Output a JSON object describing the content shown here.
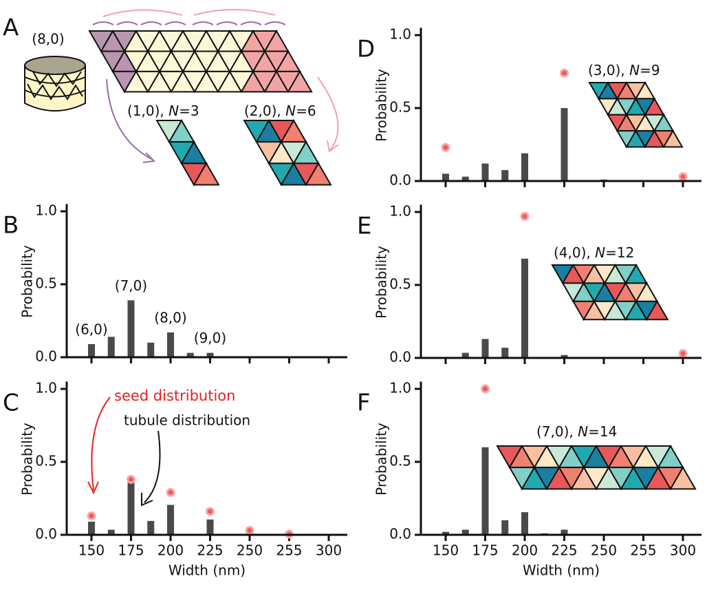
{
  "panel_a": {
    "letter": "A",
    "tube_label": "(8,0)",
    "strip_labels": [
      [
        "(1,0), ",
        "N",
        "=3"
      ],
      [
        "(2,0), ",
        "N",
        "=6"
      ]
    ]
  },
  "chart_data": [
    {
      "type": "bar",
      "panel": "B",
      "ylabel": "Probability",
      "ylim": [
        0,
        1.05
      ],
      "yticks": [
        {
          "value": 0,
          "label": "0.0"
        },
        {
          "value": 0.5,
          "label": "0.5"
        },
        {
          "value": 1,
          "label": "1.0"
        }
      ],
      "series": [
        {
          "color": "#4a4a4a",
          "marker": "bar",
          "values": [
            0.09,
            0.14,
            0.39,
            0.1,
            0.17,
            0.03,
            0.03,
            0,
            0,
            0,
            0,
            0,
            0
          ]
        }
      ],
      "value_annotations": [
        "(6,0)",
        null,
        "(7,0)",
        null,
        "(8,0)",
        null,
        "(9,0)",
        null,
        null,
        null,
        null,
        null,
        null
      ]
    },
    {
      "type": "bar",
      "panel": "C",
      "ylabel": "Probability",
      "xlabel": "Width (nm)",
      "categories": [
        "150",
        null,
        "175",
        null,
        "200",
        null,
        "225",
        null,
        "250",
        null,
        "255",
        null,
        "300"
      ],
      "ylim": [
        0,
        1.05
      ],
      "yticks": [
        {
          "value": 0,
          "label": "0.0"
        },
        {
          "value": 0.5,
          "label": "0.5"
        },
        {
          "value": 1,
          "label": "1.0"
        }
      ],
      "series": [
        {
          "name": "tubule distribution",
          "color": "#4a4a4a",
          "marker": "bar",
          "values": [
            0.09,
            0.035,
            0.37,
            0.095,
            0.205,
            0.005,
            0.105,
            0,
            0.05,
            0,
            0,
            0,
            0
          ]
        },
        {
          "name": "seed distribution",
          "color": "#f05a5a",
          "marker": "dot",
          "values": [
            0.13,
            null,
            0.38,
            null,
            0.29,
            null,
            0.16,
            null,
            0.03,
            null,
            0.005,
            null,
            null
          ]
        }
      ]
    },
    {
      "type": "bar",
      "panel": "D",
      "ylabel": "Probability",
      "inset_label": [
        "(3,0), ",
        "N",
        "=9"
      ],
      "ylim": [
        0,
        1.05
      ],
      "yticks": [
        {
          "value": 0,
          "label": "0.0"
        },
        {
          "value": 0.5,
          "label": "0.5"
        },
        {
          "value": 1,
          "label": "1.0"
        }
      ],
      "series": [
        {
          "color": "#4a4a4a",
          "marker": "bar",
          "values": [
            0.05,
            0.03,
            0.12,
            0.075,
            0.19,
            0.005,
            0.5,
            0,
            0.01,
            0,
            0,
            0,
            0
          ]
        },
        {
          "color": "#f05a5a",
          "marker": "dot",
          "values": [
            0.23,
            null,
            null,
            null,
            null,
            null,
            0.74,
            null,
            null,
            null,
            null,
            null,
            0.03
          ]
        }
      ]
    },
    {
      "type": "bar",
      "panel": "E",
      "ylabel": "Probability",
      "inset_label": [
        "(4,0), ",
        "N",
        "=12"
      ],
      "ylim": [
        0,
        1.05
      ],
      "yticks": [
        {
          "value": 0,
          "label": "0.0"
        },
        {
          "value": 0.5,
          "label": "0.5"
        },
        {
          "value": 1,
          "label": "1.0"
        }
      ],
      "series": [
        {
          "color": "#4a4a4a",
          "marker": "bar",
          "values": [
            0,
            0.035,
            0.13,
            0.07,
            0.68,
            0.005,
            0.02,
            0,
            0,
            0,
            0.005,
            0,
            0
          ]
        },
        {
          "color": "#f05a5a",
          "marker": "dot",
          "values": [
            null,
            null,
            null,
            null,
            0.97,
            null,
            null,
            null,
            null,
            null,
            null,
            null,
            0.03
          ]
        }
      ]
    },
    {
      "type": "bar",
      "panel": "F",
      "ylabel": "Probability",
      "xlabel": "Width (nm)",
      "inset_label": [
        "(7,0), ",
        "N",
        "=14"
      ],
      "categories": [
        "150",
        null,
        "175",
        null,
        "200",
        null,
        "225",
        null,
        "250",
        null,
        "255",
        null,
        "300"
      ],
      "ylim": [
        0,
        1.05
      ],
      "yticks": [
        {
          "value": 0,
          "label": "0.0"
        },
        {
          "value": 0.5,
          "label": "0.5"
        },
        {
          "value": 1,
          "label": "1.0"
        }
      ],
      "series": [
        {
          "color": "#4a4a4a",
          "marker": "bar",
          "values": [
            0.02,
            0.035,
            0.6,
            0.1,
            0.155,
            0.01,
            0.035,
            0,
            0,
            0,
            0,
            0,
            0
          ]
        },
        {
          "color": "#f05a5a",
          "marker": "dot",
          "values": [
            null,
            null,
            1,
            null,
            null,
            null,
            null,
            null,
            null,
            null,
            null,
            null,
            null
          ]
        }
      ]
    }
  ]
}
